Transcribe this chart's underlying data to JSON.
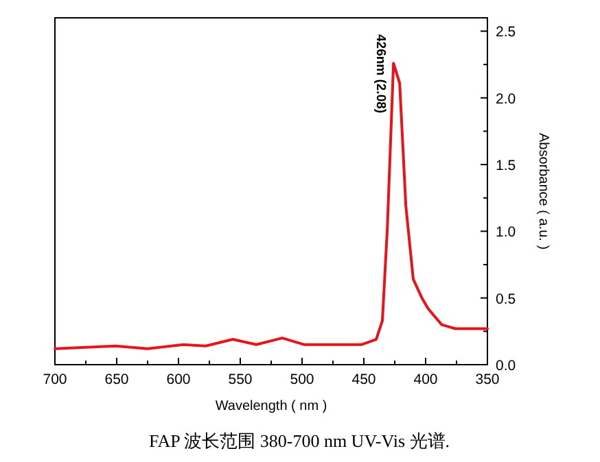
{
  "chart_data": {
    "type": "line",
    "xlabel": "Wavelength ( nm )",
    "ylabel": "Absorbance ( a.u. )",
    "annotations": [
      "426nm (2.08)",
      "FAP 波长范围 380-700 nm UV-Vis 光谱."
    ],
    "x": [
      700,
      651,
      625,
      596,
      578,
      556,
      537,
      516,
      498,
      452,
      440,
      435,
      431,
      426,
      421,
      416,
      410,
      403,
      398,
      387,
      376,
      350
    ],
    "series": [
      {
        "color": "#e8141a",
        "values": [
          0.12,
          0.14,
          0.12,
          0.15,
          0.14,
          0.19,
          0.15,
          0.2,
          0.15,
          0.15,
          0.19,
          0.33,
          1.02,
          2.26,
          2.11,
          1.19,
          0.64,
          0.5,
          0.42,
          0.3,
          0.27,
          0.27
        ]
      }
    ],
    "xlim": [
      700,
      350
    ],
    "ylim": [
      0,
      2.6
    ],
    "xticks": [
      700,
      {
        "value": 675,
        "label": null
      },
      650,
      {
        "value": 625,
        "label": null
      },
      600,
      {
        "value": 575,
        "label": null
      },
      550,
      {
        "value": 525,
        "label": null
      },
      500,
      {
        "value": 475,
        "label": null
      },
      450,
      {
        "value": 425,
        "label": null
      },
      400,
      {
        "value": 375,
        "label": null
      },
      350
    ],
    "yticks": [
      {
        "value": 0,
        "label": "0.0"
      },
      {
        "value": 0.25,
        "label": null
      },
      0.5,
      {
        "value": 0.75,
        "label": null
      },
      {
        "value": 1,
        "label": "1.0"
      },
      {
        "value": 1.25,
        "label": null
      },
      1.5,
      {
        "value": 1.75,
        "label": null
      },
      {
        "value": 2,
        "label": "2.0"
      },
      {
        "value": 2.25,
        "label": null
      },
      2.5
    ],
    "grid": false,
    "marker": "none",
    "line_style": "solid"
  }
}
